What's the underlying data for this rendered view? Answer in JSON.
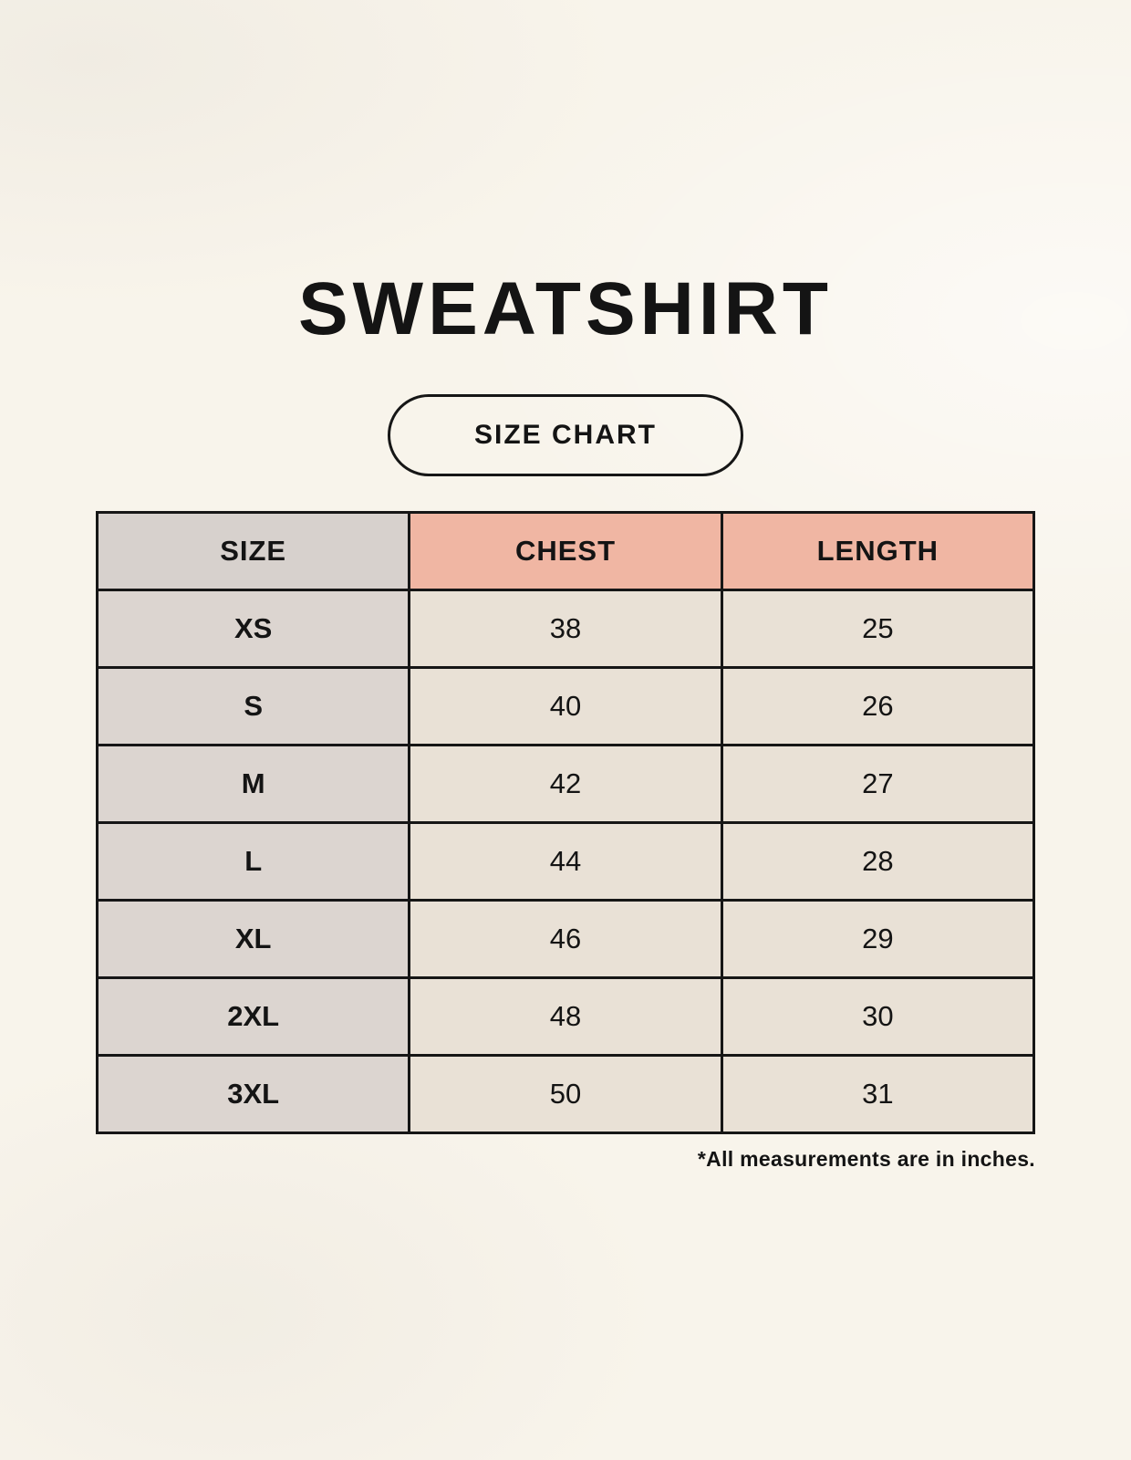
{
  "title": "SWEATSHIRT",
  "badge_label": "SIZE CHART",
  "footnote": "*All measurements are in inches.",
  "chart_data": {
    "type": "table",
    "title": "SWEATSHIRT",
    "subtitle": "SIZE CHART",
    "columns": [
      "SIZE",
      "CHEST",
      "LENGTH"
    ],
    "rows": [
      [
        "XS",
        "38",
        "25"
      ],
      [
        "S",
        "40",
        "26"
      ],
      [
        "M",
        "42",
        "27"
      ],
      [
        "L",
        "44",
        "28"
      ],
      [
        "XL",
        "46",
        "29"
      ],
      [
        "2XL",
        "48",
        "30"
      ],
      [
        "3XL",
        "50",
        "31"
      ]
    ],
    "units": "inches",
    "notes": "*All measurements are in inches."
  },
  "colors": {
    "background": "#f8f4eb",
    "header_size_bg": "#d7d1cd",
    "header_accent_bg": "#f0b6a3",
    "row_label_bg": "#dcd5d0",
    "cell_bg": "#e9e1d6",
    "border": "#161616",
    "text": "#141414"
  }
}
